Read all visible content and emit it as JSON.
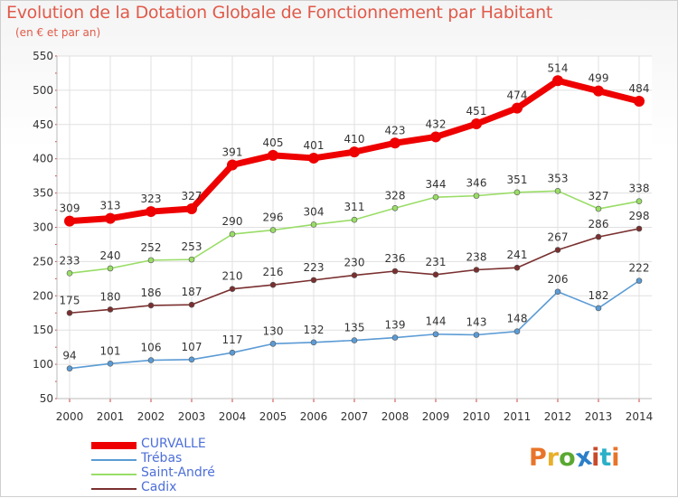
{
  "header": {
    "title": "Evolution de la Dotation Globale de Fonctionnement par Habitant",
    "subtitle": "(en € et par an)"
  },
  "logo": {
    "text": "Proxiti",
    "colors": [
      "#e8742a",
      "#e8b02a",
      "#5aa832",
      "#2a7fc8",
      "#c84a2a",
      "#2ab0c8",
      "#e8742a"
    ]
  },
  "colors": {
    "curvalle": "#ee0000",
    "trebas": "#5b9bd5",
    "saint_andre": "#99dd66",
    "cadix": "#7a2f2f",
    "axis_text": "#333333",
    "grid": "#e0e0e0"
  },
  "chart_data": {
    "type": "line",
    "title": "Evolution de la Dotation Globale de Fonctionnement par Habitant",
    "subtitle": "(en € et par an)",
    "xlabel": "",
    "ylabel": "",
    "ylim": [
      50,
      550
    ],
    "yticks": [
      50,
      100,
      150,
      200,
      250,
      300,
      350,
      400,
      450,
      500,
      550
    ],
    "grid": true,
    "legend_position": "bottom-left",
    "x": [
      "2000",
      "2001",
      "2002",
      "2003",
      "2004",
      "2005",
      "2006",
      "2007",
      "2008",
      "2009",
      "2010",
      "2011",
      "2012",
      "2013",
      "2014"
    ],
    "series": [
      {
        "name": "CURVALLE",
        "color": "#ee0000",
        "values": [
          309,
          313,
          323,
          327,
          391,
          405,
          401,
          410,
          423,
          432,
          451,
          474,
          514,
          499,
          484
        ]
      },
      {
        "name": "Trébas",
        "color": "#5b9bd5",
        "values": [
          94,
          101,
          106,
          107,
          117,
          130,
          132,
          135,
          139,
          144,
          143,
          148,
          206,
          182,
          222
        ]
      },
      {
        "name": "Saint-André",
        "color": "#99dd66",
        "values": [
          233,
          240,
          252,
          253,
          290,
          296,
          304,
          311,
          328,
          344,
          346,
          351,
          353,
          327,
          338
        ]
      },
      {
        "name": "Cadix",
        "color": "#7a2f2f",
        "values": [
          175,
          180,
          186,
          187,
          210,
          216,
          223,
          230,
          236,
          231,
          238,
          241,
          267,
          286,
          298
        ]
      }
    ]
  }
}
